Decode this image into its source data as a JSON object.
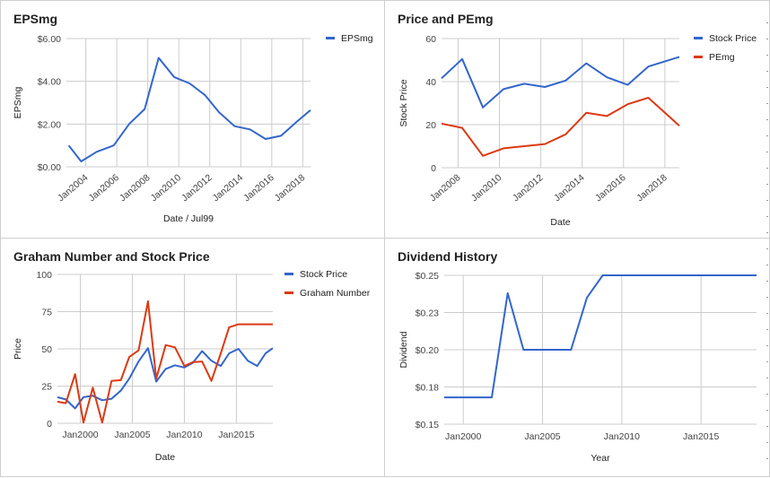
{
  "colors": {
    "blue": "#3366cc",
    "red": "#dc3912"
  },
  "chart_data": [
    {
      "type": "line",
      "title": "EPSmg",
      "xlabel": "Date / Jul99",
      "ylabel": "EPSmg",
      "yticks": [
        "$0.00",
        "$2.00",
        "$4.00",
        "$6.00"
      ],
      "ylim": [
        0,
        6
      ],
      "xlim": [
        2002.75,
        2018.5
      ],
      "xticks": [
        "Jan2004",
        "Jan2006",
        "Jan2008",
        "Jan2010",
        "Jan2012",
        "Jan2014",
        "Jan2016",
        "Jan2018"
      ],
      "xtick_values": [
        2004,
        2006,
        2008,
        2010,
        2012,
        2014,
        2016,
        2018
      ],
      "grid": true,
      "legend": "top-right",
      "series": [
        {
          "name": "EPSmg",
          "color": "#3366cc",
          "x": [
            2002.9,
            2003.7,
            2004.7,
            2005.8,
            2006.8,
            2007.8,
            2008.7,
            2009.7,
            2010.7,
            2011.7,
            2012.6,
            2013.6,
            2014.6,
            2015.6,
            2016.6,
            2017.6,
            2018.5
          ],
          "values": [
            1.0,
            0.25,
            0.7,
            1.0,
            2.0,
            2.7,
            5.1,
            4.2,
            3.9,
            3.35,
            2.55,
            1.9,
            1.75,
            1.3,
            1.45,
            2.1,
            2.65
          ]
        }
      ]
    },
    {
      "type": "line",
      "title": "Price and PEmg",
      "xlabel": "Date",
      "ylabel": "Stock Price",
      "yticks": [
        "0",
        "20",
        "40",
        "60"
      ],
      "ylim": [
        0,
        60
      ],
      "xlim": [
        2007.2,
        2018.7
      ],
      "xticks": [
        "Jan2008",
        "Jan2010",
        "Jan2012",
        "Jan2014",
        "Jan2016",
        "Jan2018"
      ],
      "xtick_values": [
        2008,
        2010,
        2012,
        2014,
        2016,
        2018
      ],
      "grid": true,
      "legend": "top-right",
      "series": [
        {
          "name": "Stock Price",
          "color": "#3366cc",
          "x": [
            2007.2,
            2008.2,
            2009.2,
            2010.2,
            2011.2,
            2012.2,
            2013.2,
            2014.2,
            2015.2,
            2016.2,
            2017.2,
            2018.7
          ],
          "values": [
            41.5,
            50.5,
            28.0,
            36.5,
            39.0,
            37.5,
            40.5,
            48.5,
            42.0,
            38.5,
            47.0,
            51.5
          ]
        },
        {
          "name": "PEmg",
          "color": "#dc3912",
          "x": [
            2007.2,
            2008.2,
            2009.2,
            2010.2,
            2011.2,
            2012.2,
            2013.2,
            2014.2,
            2015.2,
            2016.2,
            2017.2,
            2018.7
          ],
          "values": [
            20.5,
            18.5,
            5.5,
            9.0,
            10.0,
            11.0,
            15.5,
            25.5,
            24.0,
            29.5,
            32.5,
            19.5
          ]
        }
      ]
    },
    {
      "type": "line",
      "title": "Graham Number and Stock Price",
      "xlabel": "Date",
      "ylabel": "Price",
      "yticks": [
        "0",
        "25",
        "50",
        "75",
        "100"
      ],
      "ylim": [
        0,
        100
      ],
      "xlim": [
        1997.8,
        2018.5
      ],
      "xticks": [
        "Jan2000",
        "Jan2005",
        "Jan2010",
        "Jan2015"
      ],
      "xtick_values": [
        2000,
        2005,
        2010,
        2015
      ],
      "grid": true,
      "legend": "top-right",
      "series": [
        {
          "name": "Stock Price",
          "color": "#3366cc",
          "x": [
            1997.8,
            1998.6,
            1999.5,
            2000.3,
            2001.2,
            2002.1,
            2003.0,
            2003.9,
            2004.7,
            2005.6,
            2006.5,
            2007.3,
            2008.2,
            2009.1,
            2010.0,
            2010.8,
            2011.7,
            2012.6,
            2013.5,
            2014.3,
            2015.2,
            2016.1,
            2017.0,
            2017.8,
            2018.5
          ],
          "values": [
            17.5,
            16.0,
            10.0,
            17.5,
            18.5,
            15.5,
            16.5,
            22.0,
            30.0,
            41.5,
            50.5,
            28.0,
            36.5,
            39.0,
            37.5,
            40.5,
            48.5,
            42.0,
            38.5,
            47.0,
            50.0,
            42.0,
            38.5,
            47.0,
            50.5
          ]
        },
        {
          "name": "Graham Number",
          "color": "#dc3912",
          "x": [
            1997.8,
            1998.6,
            1999.5,
            2000.3,
            2001.2,
            2002.1,
            2003.0,
            2003.9,
            2004.7,
            2005.6,
            2006.5,
            2007.3,
            2008.2,
            2009.1,
            2010.0,
            2010.8,
            2011.7,
            2012.6,
            2013.5,
            2014.3,
            2015.2,
            2016.1,
            2017.0,
            2017.8,
            2018.5
          ],
          "values": [
            14.5,
            13.5,
            33.0,
            0.5,
            24.0,
            0.5,
            28.5,
            29.0,
            44.5,
            49.0,
            82.0,
            30.0,
            52.5,
            51.0,
            38.5,
            41.0,
            41.5,
            28.5,
            47.0,
            64.5,
            66.5,
            66.5,
            66.5,
            66.5,
            66.5
          ]
        }
      ]
    },
    {
      "type": "line",
      "title": "Dividend History",
      "xlabel": "Year",
      "ylabel": "Dividend",
      "yticks": [
        "$0.15",
        "$0.18",
        "$0.20",
        "$0.23",
        "$0.25"
      ],
      "ylim": [
        0.15,
        0.25
      ],
      "xlim": [
        1998.8,
        2018.5
      ],
      "xticks": [
        "Jan2000",
        "Jan2005",
        "Jan2010",
        "Jan2015"
      ],
      "xtick_values": [
        2000,
        2005,
        2010,
        2015
      ],
      "grid": true,
      "legend": "none",
      "series": [
        {
          "name": "",
          "color": "#3366cc",
          "x": [
            1998.8,
            2001.8,
            2002.8,
            2003.8,
            2006.8,
            2007.8,
            2008.8,
            2018.5
          ],
          "values": [
            0.168,
            0.168,
            0.238,
            0.2,
            0.2,
            0.235,
            0.25,
            0.25
          ]
        }
      ]
    }
  ]
}
